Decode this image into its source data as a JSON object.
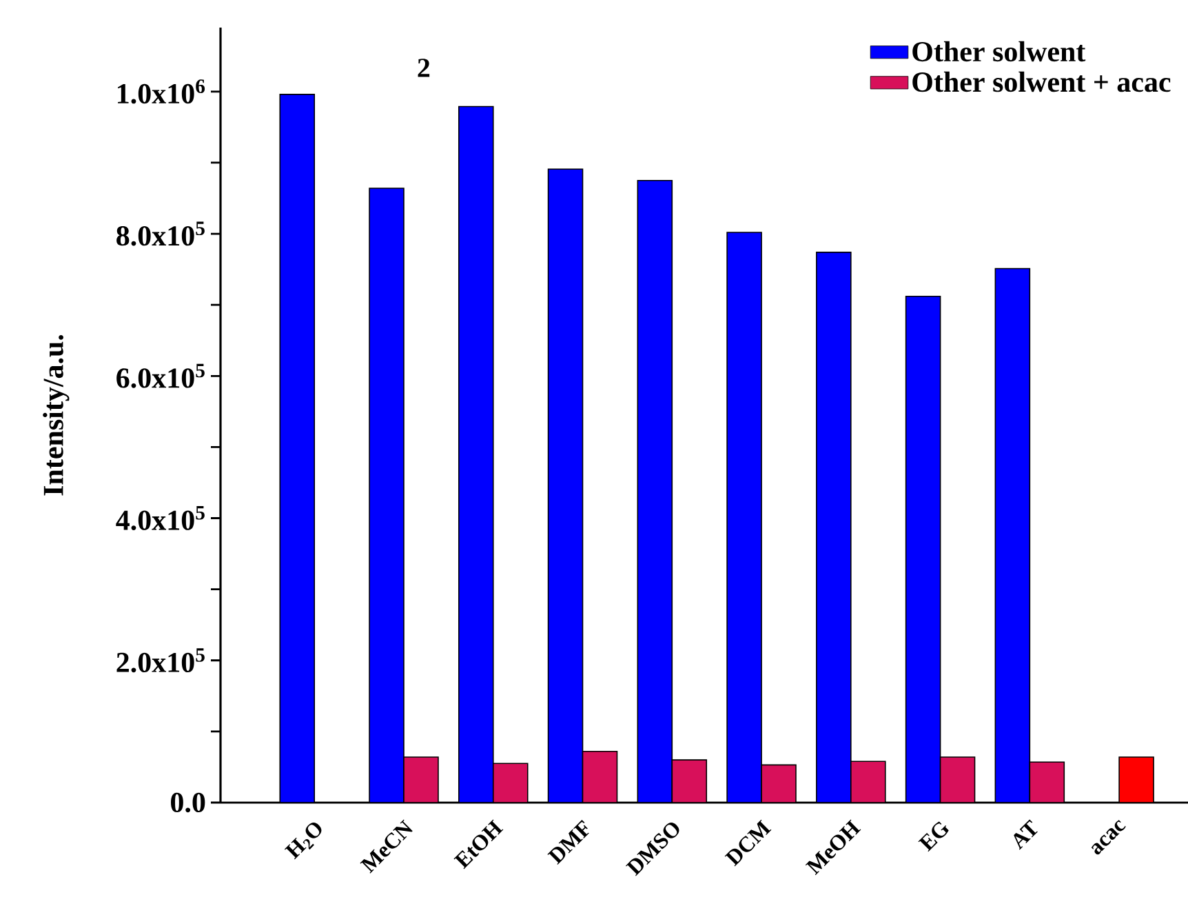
{
  "chart_data": {
    "type": "bar",
    "ylabel": "Intensity/a.u.",
    "annotations": [
      "2"
    ],
    "categories": [
      "H$_{2}$O",
      "MeCN",
      "EtOH",
      "DMF",
      "DMSO",
      "DCM",
      "MeOH",
      "EG",
      "AT",
      "acac"
    ],
    "series": [
      {
        "name": "Other  solwent",
        "color": "#0000ff",
        "values": [
          996000,
          864000,
          979000,
          891000,
          875000,
          802000,
          774000,
          712000,
          751000,
          null
        ]
      },
      {
        "name": "Other  solwent + acac",
        "color": "#d8105a",
        "colors": [
          "#d8105a",
          "#d8105a",
          "#d8105a",
          "#d8105a",
          "#d8105a",
          "#d8105a",
          "#d8105a",
          "#d8105a",
          "#d8105a",
          "#ff0000"
        ],
        "values": [
          null,
          64000,
          55000,
          72000,
          60000,
          53000,
          58000,
          64000,
          57000,
          64000
        ]
      }
    ],
    "ylim": [
      0,
      1090000
    ],
    "yticks": [
      {
        "value": 0,
        "label": "0.0"
      },
      {
        "value": 100000,
        "label": null
      },
      {
        "value": 200000,
        "label": "2.0x10$^{5}$"
      },
      {
        "value": 300000,
        "label": null
      },
      {
        "value": 400000,
        "label": "4.0x10$^{5}$"
      },
      {
        "value": 500000,
        "label": null
      },
      {
        "value": 600000,
        "label": "6.0x10$^{5}$"
      },
      {
        "value": 700000,
        "label": null
      },
      {
        "value": 800000,
        "label": "8.0x10$^{5}$"
      },
      {
        "value": 900000,
        "label": null
      },
      {
        "value": 1000000,
        "label": "1.0x10$^{6}$"
      }
    ],
    "legend": "top right"
  }
}
